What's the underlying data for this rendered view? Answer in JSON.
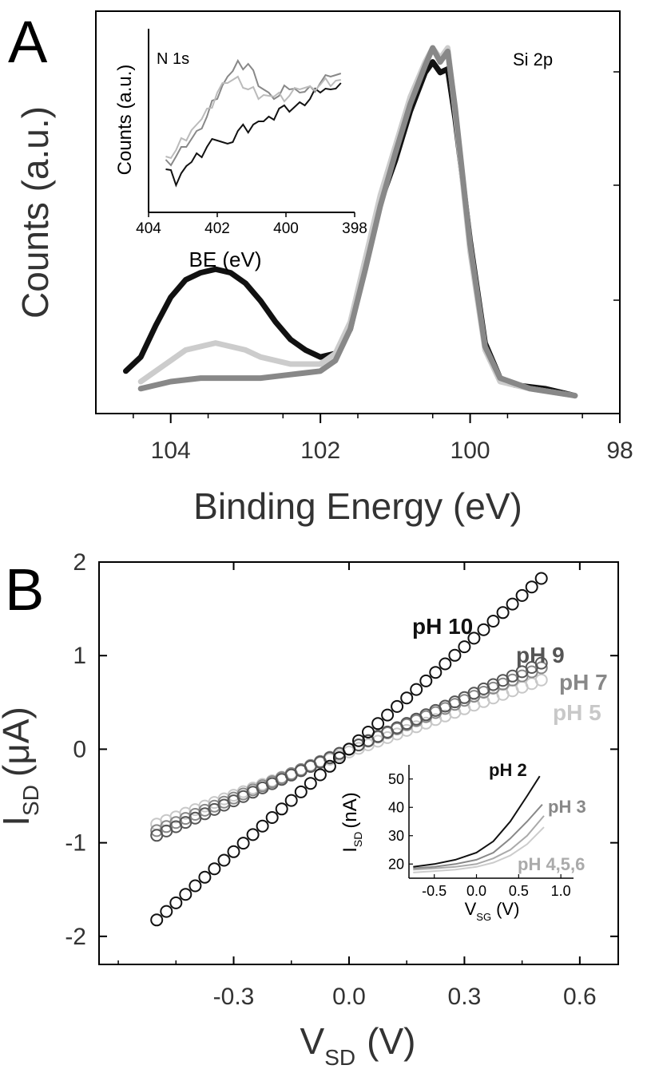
{
  "chart_data": [
    {
      "panel": "A",
      "type": "line",
      "xlabel": "Binding Energy (eV)",
      "ylabel": "Counts (a.u.)",
      "xlim": [
        105,
        98
      ],
      "x_reversed": true,
      "x_ticks": [
        "104",
        "102",
        "100",
        "98"
      ],
      "y_ticks_labeled": false,
      "annotation": "Si 2p",
      "series": [
        {
          "color": "#111111",
          "points": [
            [
              104.6,
              0.08
            ],
            [
              104.4,
              0.12
            ],
            [
              104.2,
              0.21
            ],
            [
              104.0,
              0.29
            ],
            [
              103.8,
              0.34
            ],
            [
              103.6,
              0.36
            ],
            [
              103.4,
              0.37
            ],
            [
              103.2,
              0.36
            ],
            [
              103.0,
              0.33
            ],
            [
              102.8,
              0.28
            ],
            [
              102.6,
              0.22
            ],
            [
              102.4,
              0.17
            ],
            [
              102.2,
              0.14
            ],
            [
              102.0,
              0.12
            ],
            [
              101.8,
              0.13
            ],
            [
              101.6,
              0.2
            ],
            [
              101.4,
              0.38
            ],
            [
              101.2,
              0.56
            ],
            [
              101.0,
              0.68
            ],
            [
              100.8,
              0.82
            ],
            [
              100.6,
              0.93
            ],
            [
              100.5,
              0.96
            ],
            [
              100.4,
              0.93
            ],
            [
              100.3,
              0.94
            ],
            [
              100.2,
              0.8
            ],
            [
              100.0,
              0.45
            ],
            [
              99.8,
              0.16
            ],
            [
              99.6,
              0.06
            ],
            [
              99.4,
              0.04
            ],
            [
              99.0,
              0.03
            ],
            [
              98.6,
              0.01
            ]
          ]
        },
        {
          "color": "#cccccc",
          "points": [
            [
              104.4,
              0.05
            ],
            [
              104.0,
              0.11
            ],
            [
              103.8,
              0.14
            ],
            [
              103.6,
              0.15
            ],
            [
              103.4,
              0.16
            ],
            [
              103.2,
              0.15
            ],
            [
              103.0,
              0.14
            ],
            [
              102.8,
              0.12
            ],
            [
              102.4,
              0.1
            ],
            [
              102.0,
              0.1
            ],
            [
              101.8,
              0.13
            ],
            [
              101.6,
              0.22
            ],
            [
              101.4,
              0.4
            ],
            [
              101.2,
              0.58
            ],
            [
              101.0,
              0.72
            ],
            [
              100.8,
              0.86
            ],
            [
              100.6,
              0.96
            ],
            [
              100.5,
              1.0
            ],
            [
              100.4,
              0.97
            ],
            [
              100.3,
              1.0
            ],
            [
              100.2,
              0.82
            ],
            [
              100.0,
              0.42
            ],
            [
              99.8,
              0.14
            ],
            [
              99.6,
              0.05
            ],
            [
              99.2,
              0.03
            ],
            [
              98.6,
              0.01
            ]
          ]
        },
        {
          "color": "#888888",
          "points": [
            [
              104.4,
              0.03
            ],
            [
              104.0,
              0.05
            ],
            [
              103.6,
              0.06
            ],
            [
              103.2,
              0.06
            ],
            [
              102.8,
              0.06
            ],
            [
              102.4,
              0.07
            ],
            [
              102.0,
              0.08
            ],
            [
              101.8,
              0.11
            ],
            [
              101.6,
              0.2
            ],
            [
              101.4,
              0.37
            ],
            [
              101.2,
              0.55
            ],
            [
              101.0,
              0.7
            ],
            [
              100.8,
              0.84
            ],
            [
              100.6,
              0.95
            ],
            [
              100.5,
              1.0
            ],
            [
              100.4,
              0.96
            ],
            [
              100.3,
              0.99
            ],
            [
              100.2,
              0.83
            ],
            [
              100.0,
              0.44
            ],
            [
              99.8,
              0.15
            ],
            [
              99.6,
              0.06
            ],
            [
              99.2,
              0.03
            ],
            [
              98.6,
              0.01
            ]
          ]
        }
      ]
    },
    {
      "panel": "A-inset",
      "type": "line",
      "xlabel": "BE (eV)",
      "ylabel": "Counts (a.u.)",
      "xlim": [
        404,
        398
      ],
      "x_reversed": true,
      "x_ticks": [
        "404",
        "402",
        "400",
        "398"
      ],
      "annotation": "N 1s",
      "series": [
        {
          "color": "#111111",
          "points": [
            [
              403.5,
              0.22
            ],
            [
              403.2,
              0.12
            ],
            [
              402.9,
              0.24
            ],
            [
              402.6,
              0.32
            ],
            [
              402.3,
              0.36
            ],
            [
              402.0,
              0.4
            ],
            [
              401.7,
              0.38
            ],
            [
              401.4,
              0.46
            ],
            [
              401.1,
              0.45
            ],
            [
              400.8,
              0.52
            ],
            [
              400.5,
              0.55
            ],
            [
              400.2,
              0.6
            ],
            [
              399.9,
              0.58
            ],
            [
              399.6,
              0.64
            ],
            [
              399.3,
              0.66
            ],
            [
              399.0,
              0.7
            ],
            [
              398.7,
              0.72
            ],
            [
              398.4,
              0.76
            ]
          ]
        },
        {
          "color": "#888888",
          "points": [
            [
              403.5,
              0.28
            ],
            [
              403.2,
              0.3
            ],
            [
              402.9,
              0.36
            ],
            [
              402.6,
              0.46
            ],
            [
              402.3,
              0.55
            ],
            [
              402.0,
              0.66
            ],
            [
              401.7,
              0.8
            ],
            [
              401.4,
              0.9
            ],
            [
              401.1,
              0.88
            ],
            [
              400.8,
              0.74
            ],
            [
              400.5,
              0.7
            ],
            [
              400.2,
              0.68
            ],
            [
              399.9,
              0.72
            ],
            [
              399.6,
              0.7
            ],
            [
              399.3,
              0.74
            ],
            [
              399.0,
              0.76
            ],
            [
              398.7,
              0.8
            ],
            [
              398.4,
              0.82
            ]
          ]
        },
        {
          "color": "#bbbbbb",
          "points": [
            [
              403.5,
              0.3
            ],
            [
              403.2,
              0.34
            ],
            [
              402.9,
              0.4
            ],
            [
              402.6,
              0.5
            ],
            [
              402.3,
              0.6
            ],
            [
              402.0,
              0.7
            ],
            [
              401.7,
              0.76
            ],
            [
              401.4,
              0.8
            ],
            [
              401.1,
              0.72
            ],
            [
              400.8,
              0.66
            ],
            [
              400.5,
              0.68
            ],
            [
              400.2,
              0.7
            ],
            [
              399.9,
              0.68
            ],
            [
              399.6,
              0.72
            ],
            [
              399.3,
              0.74
            ],
            [
              399.0,
              0.75
            ],
            [
              398.7,
              0.74
            ],
            [
              398.4,
              0.78
            ]
          ]
        }
      ]
    },
    {
      "panel": "B",
      "type": "scatter",
      "xlabel": "V",
      "xlabel_sub": "SD",
      "xlabel_unit": "(V)",
      "ylabel": "I",
      "ylabel_sub": "SD",
      "ylabel_unit": "(μA)",
      "xlim": [
        -0.65,
        0.7
      ],
      "ylim": [
        -2.3,
        2.0
      ],
      "x_ticks": [
        -0.3,
        0.0,
        0.3,
        0.6
      ],
      "x_tick_labels": [
        "-0.3",
        "0.0",
        "0.3",
        "0.6"
      ],
      "y_ticks": [
        -2,
        -1,
        0,
        1,
        2
      ],
      "y_tick_labels": [
        "-2",
        "-1",
        "0",
        "1",
        "2"
      ],
      "x_range_points": [
        -0.5,
        0.5
      ],
      "n_points": 41,
      "series": [
        {
          "name": "pH 10",
          "color": "#111111",
          "slope": 3.65,
          "offset": 0.0
        },
        {
          "name": "pH 9",
          "color": "#555555",
          "slope": 1.84,
          "offset": 0.0
        },
        {
          "name": "pH 7",
          "color": "#888888",
          "slope": 1.74,
          "offset": 0.0
        },
        {
          "name": "pH 5",
          "color": "#c8c8c8",
          "slope": 1.54,
          "offset": -0.03
        }
      ]
    },
    {
      "panel": "B-inset",
      "type": "line",
      "xlabel": "V",
      "xlabel_sub": "SG",
      "xlabel_unit": "(V)",
      "ylabel": "I",
      "ylabel_sub": "SD",
      "ylabel_unit": "(nA)",
      "xlim": [
        -0.8,
        1.15
      ],
      "ylim": [
        15,
        55
      ],
      "x_ticks": [
        -0.5,
        0.0,
        0.5,
        1.0
      ],
      "x_tick_labels": [
        "-0.5",
        "0.0",
        "0.5",
        "1.0"
      ],
      "y_ticks": [
        20,
        30,
        40,
        50
      ],
      "y_tick_labels": [
        "20",
        "30",
        "40",
        "50"
      ],
      "series": [
        {
          "name": "pH 2",
          "color": "#111111",
          "points": [
            [
              -0.75,
              19
            ],
            [
              -0.5,
              20
            ],
            [
              -0.25,
              21.5
            ],
            [
              0.0,
              24
            ],
            [
              0.2,
              28
            ],
            [
              0.4,
              35
            ],
            [
              0.6,
              44
            ],
            [
              0.75,
              51
            ]
          ]
        },
        {
          "name": "pH 3",
          "color": "#888888",
          "points": [
            [
              -0.75,
              18.5
            ],
            [
              -0.5,
              19
            ],
            [
              -0.25,
              20
            ],
            [
              0.0,
              21.5
            ],
            [
              0.2,
              24
            ],
            [
              0.4,
              29
            ],
            [
              0.6,
              35
            ],
            [
              0.78,
              41
            ]
          ]
        },
        {
          "name": "pH 4,5,6",
          "color": "#aaaaaa",
          "points": [
            [
              -0.75,
              18
            ],
            [
              -0.5,
              18.5
            ],
            [
              -0.25,
              19
            ],
            [
              0.0,
              20
            ],
            [
              0.2,
              22
            ],
            [
              0.4,
              25
            ],
            [
              0.6,
              30
            ],
            [
              0.8,
              37
            ]
          ]
        },
        {
          "name": "",
          "color": "#cccccc",
          "points": [
            [
              -0.75,
              17
            ],
            [
              -0.5,
              17.5
            ],
            [
              -0.25,
              18
            ],
            [
              0.0,
              19
            ],
            [
              0.2,
              20.5
            ],
            [
              0.4,
              23
            ],
            [
              0.6,
              27
            ],
            [
              0.8,
              33
            ]
          ]
        }
      ]
    }
  ],
  "panel_labels": {
    "a": "A",
    "b": "B"
  }
}
